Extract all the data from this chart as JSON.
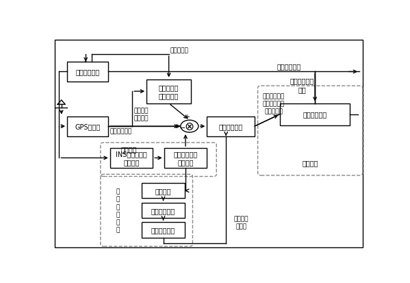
{
  "bg_color": "#ffffff",
  "lc": "#000000",
  "dc": "#888888",
  "tc": "#000000",
  "fs": 7.0,
  "outer": [
    0.01,
    0.02,
    0.97,
    0.95
  ],
  "ins_box": [
    0.05,
    0.78,
    0.13,
    0.09,
    "惯性导航系统"
  ],
  "gps_box": [
    0.05,
    0.53,
    0.13,
    0.09,
    "GPS接收机"
  ],
  "pc_box": [
    0.3,
    0.68,
    0.14,
    0.11,
    "惯导等效伪\n距、伪距率"
  ],
  "ms_box": [
    0.49,
    0.53,
    0.15,
    0.09,
    "测量信息筛选"
  ],
  "kf_box": [
    0.72,
    0.58,
    0.22,
    0.1,
    "卡尔曼滤波器"
  ],
  "ins2_box": [
    0.185,
    0.385,
    0.135,
    0.09,
    "INS位置、速度\n星历文件"
  ],
  "aided_box": [
    0.355,
    0.385,
    0.135,
    0.09,
    "加入惯导辅助\n观测信息"
  ],
  "fd_box": [
    0.285,
    0.245,
    0.135,
    0.07,
    "故障检测"
  ],
  "fi_box": [
    0.285,
    0.155,
    0.135,
    0.07,
    "故障识别模块"
  ],
  "oi_box": [
    0.285,
    0.065,
    0.135,
    0.07,
    "观测信息评价"
  ],
  "sys_dashed": [
    0.66,
    0.36,
    0.31,
    0.39
  ],
  "aid_dashed": [
    0.165,
    0.355,
    0.345,
    0.135
  ],
  "sat_dashed": [
    0.165,
    0.035,
    0.27,
    0.31
  ],
  "circ": [
    0.435,
    0.575,
    0.028
  ]
}
